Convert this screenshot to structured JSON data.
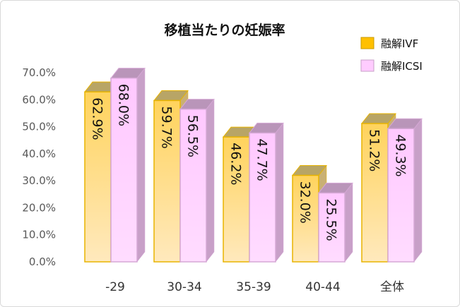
{
  "chart_data": {
    "type": "bar",
    "title": "移植当たりの妊娠率",
    "categories": [
      "-29",
      "30-34",
      "35-39",
      "40-44",
      "全体"
    ],
    "series": [
      {
        "name": "融解IVF",
        "values": [
          62.9,
          59.7,
          46.2,
          32.0,
          51.2
        ],
        "labels": [
          "62.9%",
          "59.7%",
          "46.2%",
          "32.0%",
          "51.2%"
        ],
        "color": "#ffd35c"
      },
      {
        "name": "融解ICSI",
        "values": [
          68.0,
          56.5,
          47.7,
          25.5,
          49.3
        ],
        "labels": [
          "68.0%",
          "56.5%",
          "47.7%",
          "25.5%",
          "49.3%"
        ],
        "color": "#ffccff"
      }
    ],
    "ylim": [
      0,
      70
    ],
    "yticks": [
      "0.0%",
      "10.0%",
      "20.0%",
      "30.0%",
      "40.0%",
      "50.0%",
      "60.0%",
      "70.0%"
    ],
    "xlabel": "",
    "ylabel": "",
    "grid": false,
    "legend_position": "top-right",
    "style": "3d-bar"
  }
}
